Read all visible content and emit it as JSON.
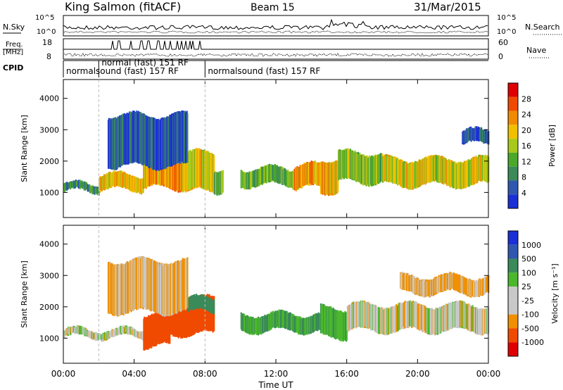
{
  "header": {
    "station": "King Salmon (fitACF)",
    "beam": "Beam 15",
    "date": "31/Mar/2015"
  },
  "top_panels": {
    "nsky_label": "N.Sky",
    "nsearch_label": "N.Search",
    "noise_ticks": [
      "10^5",
      "10^0"
    ],
    "freq_label": "Freq.",
    "freq_unit": "[MHz]",
    "freq_ticks": [
      "18",
      "8"
    ],
    "nave_label": "Nave",
    "nave_ticks": [
      "60",
      "0"
    ],
    "cpid_label": "CPID",
    "cpid_entries": [
      {
        "text": "normalsound (fast) 157 RF",
        "start_hour": 0.0,
        "row": 2
      },
      {
        "text": "normal (fast) 151 RF",
        "start_hour": 2.0,
        "row": 1
      },
      {
        "text": "normalsound (fast) 157 RF",
        "start_hour": 8.0,
        "row": 2
      }
    ]
  },
  "colors": {
    "power": [
      "#1a2fd6",
      "#2f57b0",
      "#3a8a5a",
      "#4aa82a",
      "#a8c81a",
      "#f0c000",
      "#f08a00",
      "#f04a00",
      "#e00000"
    ],
    "velocity": [
      "#e00000",
      "#f04a00",
      "#f09000",
      "#c8c8c8",
      "#c8c8c8",
      "#4ab82a",
      "#3a8a5a",
      "#2f57b0",
      "#1a2fd6"
    ]
  },
  "chart_data": [
    {
      "type": "heatmap",
      "ylabel": "Slant Range [km]",
      "xlabel": "Time UT",
      "x_ticks": [
        "00:00",
        "04:00",
        "08:00",
        "12:00",
        "16:00",
        "20:00",
        "00:00"
      ],
      "xlim": [
        0,
        24
      ],
      "ylim": [
        200,
        4600
      ],
      "y_ticks": [
        1000,
        2000,
        3000,
        4000
      ],
      "colorbar": {
        "label": "Power [dB]",
        "ticks": [
          "4",
          "8",
          "12",
          "16",
          "20",
          "24",
          "28"
        ]
      },
      "echo_bands": [
        {
          "t0": 0.0,
          "t1": 2.0,
          "r0": 1000,
          "r1": 1300,
          "power": 10
        },
        {
          "t0": 2.0,
          "t1": 4.5,
          "r0": 1050,
          "r1": 1600,
          "power": 20
        },
        {
          "t0": 4.5,
          "t1": 7.5,
          "r0": 1100,
          "r1": 2100,
          "power": 22
        },
        {
          "t0": 7.0,
          "t1": 8.5,
          "r0": 1000,
          "r1": 2300,
          "power": 18
        },
        {
          "t0": 8.5,
          "t1": 9.0,
          "r0": 1000,
          "r1": 1800,
          "power": 12
        },
        {
          "t0": 2.5,
          "t1": 7.0,
          "r0": 1800,
          "r1": 3500,
          "power": 5
        },
        {
          "t0": 10.0,
          "t1": 13.0,
          "r0": 1200,
          "r1": 1800,
          "power": 12
        },
        {
          "t0": 13.0,
          "t1": 14.5,
          "r0": 1100,
          "r1": 1900,
          "power": 22
        },
        {
          "t0": 14.5,
          "t1": 15.5,
          "r0": 1000,
          "r1": 2100,
          "power": 22
        },
        {
          "t0": 15.5,
          "t1": 18.0,
          "r0": 1300,
          "r1": 2300,
          "power": 14
        },
        {
          "t0": 18.0,
          "t1": 24.0,
          "r0": 1200,
          "r1": 2100,
          "power": 18
        },
        {
          "t0": 22.5,
          "t1": 24.0,
          "r0": 2500,
          "r1": 3000,
          "power": 5
        }
      ]
    },
    {
      "type": "heatmap",
      "ylabel": "Slant Range [km]",
      "xlabel": "Time UT",
      "x_ticks": [
        "00:00",
        "04:00",
        "08:00",
        "12:00",
        "16:00",
        "20:00",
        "00:00"
      ],
      "xlim": [
        0,
        24
      ],
      "ylim": [
        200,
        4600
      ],
      "y_ticks": [
        1000,
        2000,
        3000,
        4000
      ],
      "colorbar": {
        "label": "Velocity [m s⁻¹]",
        "ticks": [
          "1000",
          "500",
          "100",
          "25",
          "-25",
          "-100",
          "-500",
          "-1000"
        ]
      },
      "echo_bands": [
        {
          "t0": 0.0,
          "t1": 4.5,
          "r0": 1000,
          "r1": 1300,
          "velocity": 0
        },
        {
          "t0": 4.5,
          "t1": 6.0,
          "r0": 700,
          "r1": 1800,
          "velocity": -300
        },
        {
          "t0": 6.0,
          "t1": 8.5,
          "r0": 1100,
          "r1": 2300,
          "velocity": -300
        },
        {
          "t0": 7.0,
          "t1": 8.5,
          "r0": 1800,
          "r1": 2300,
          "velocity": 300
        },
        {
          "t0": 2.5,
          "t1": 7.0,
          "r0": 1800,
          "r1": 3500,
          "velocity": -80
        },
        {
          "t0": 10.0,
          "t1": 14.5,
          "r0": 1200,
          "r1": 1800,
          "velocity": 200
        },
        {
          "t0": 14.5,
          "t1": 16.0,
          "r0": 1000,
          "r1": 2000,
          "velocity": 150
        },
        {
          "t0": 16.0,
          "t1": 24.0,
          "r0": 1200,
          "r1": 2100,
          "velocity": 0
        },
        {
          "t0": 19.0,
          "t1": 24.0,
          "r0": 2400,
          "r1": 3000,
          "velocity": -80
        }
      ]
    }
  ]
}
